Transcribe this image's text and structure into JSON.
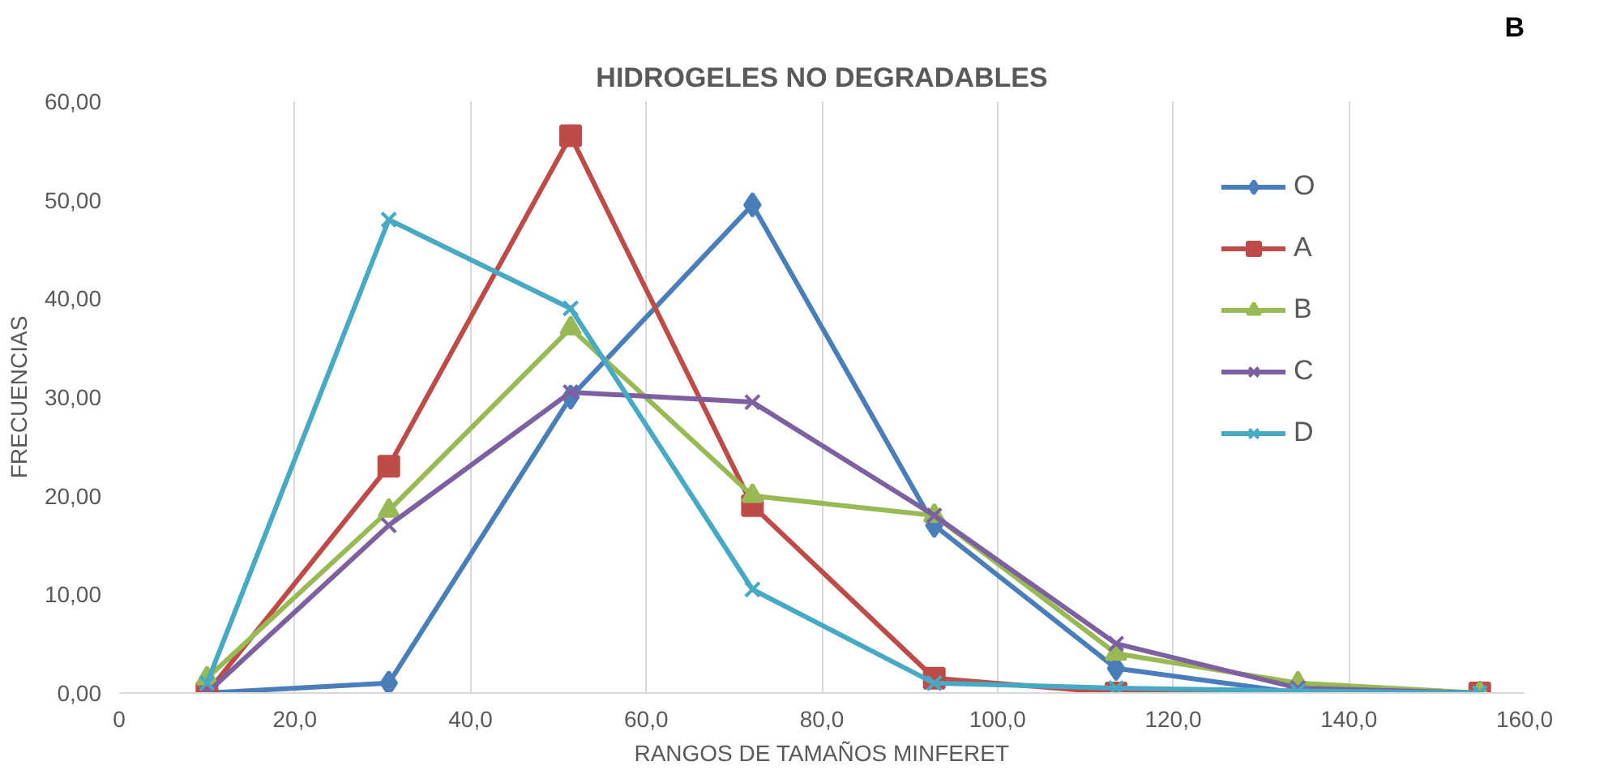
{
  "chart_data": {
    "type": "line",
    "title": "HIDROGELES NO DEGRADABLES",
    "xlabel": "RANGOS DE TAMAÑOS MINFERET",
    "ylabel": "FRECUENCIAS",
    "annotations": [
      "B"
    ],
    "x": [
      10,
      30.7,
      51.4,
      72.1,
      92.8,
      113.5,
      134.2,
      154.9
    ],
    "series": [
      {
        "name": "O",
        "color": "#4a7ebb",
        "marker": "diamond",
        "values": [
          0,
          1,
          30,
          49.5,
          17,
          2.5,
          0,
          0
        ]
      },
      {
        "name": "A",
        "color": "#be4b48",
        "marker": "square",
        "values": [
          0,
          23,
          56.5,
          19,
          1.5,
          0,
          0,
          0
        ]
      },
      {
        "name": "B",
        "color": "#98b954",
        "marker": "triangle",
        "values": [
          1.5,
          18.5,
          37,
          20,
          18,
          4,
          1,
          0
        ]
      },
      {
        "name": "C",
        "color": "#7d60a0",
        "marker": "cross",
        "values": [
          0,
          17,
          30.5,
          29.5,
          18,
          5,
          0.5,
          0
        ]
      },
      {
        "name": "D",
        "color": "#46aac5",
        "marker": "cross",
        "values": [
          1,
          48,
          39,
          10.5,
          1,
          0.5,
          0.2,
          0
        ]
      }
    ],
    "xlim": [
      0,
      160
    ],
    "ylim": [
      0,
      60
    ],
    "xticks": [
      {
        "value": 0,
        "label": "0"
      },
      {
        "value": 20,
        "label": "20,0"
      },
      {
        "value": 40,
        "label": "40,0"
      },
      {
        "value": 60,
        "label": "60,0"
      },
      {
        "value": 80,
        "label": "80,0"
      },
      {
        "value": 100,
        "label": "100,0"
      },
      {
        "value": 120,
        "label": "120,0"
      },
      {
        "value": 140,
        "label": "140,0"
      },
      {
        "value": 160,
        "label": "160,0"
      }
    ],
    "yticks": [
      {
        "value": 0,
        "label": "0,00"
      },
      {
        "value": 10,
        "label": "10,00"
      },
      {
        "value": 20,
        "label": "20,00"
      },
      {
        "value": 30,
        "label": "30,00"
      },
      {
        "value": 40,
        "label": "40,00"
      },
      {
        "value": 50,
        "label": "50,00"
      },
      {
        "value": 60,
        "label": "60,00"
      }
    ],
    "grid": "x",
    "legend": "right",
    "line_style": "solid"
  }
}
